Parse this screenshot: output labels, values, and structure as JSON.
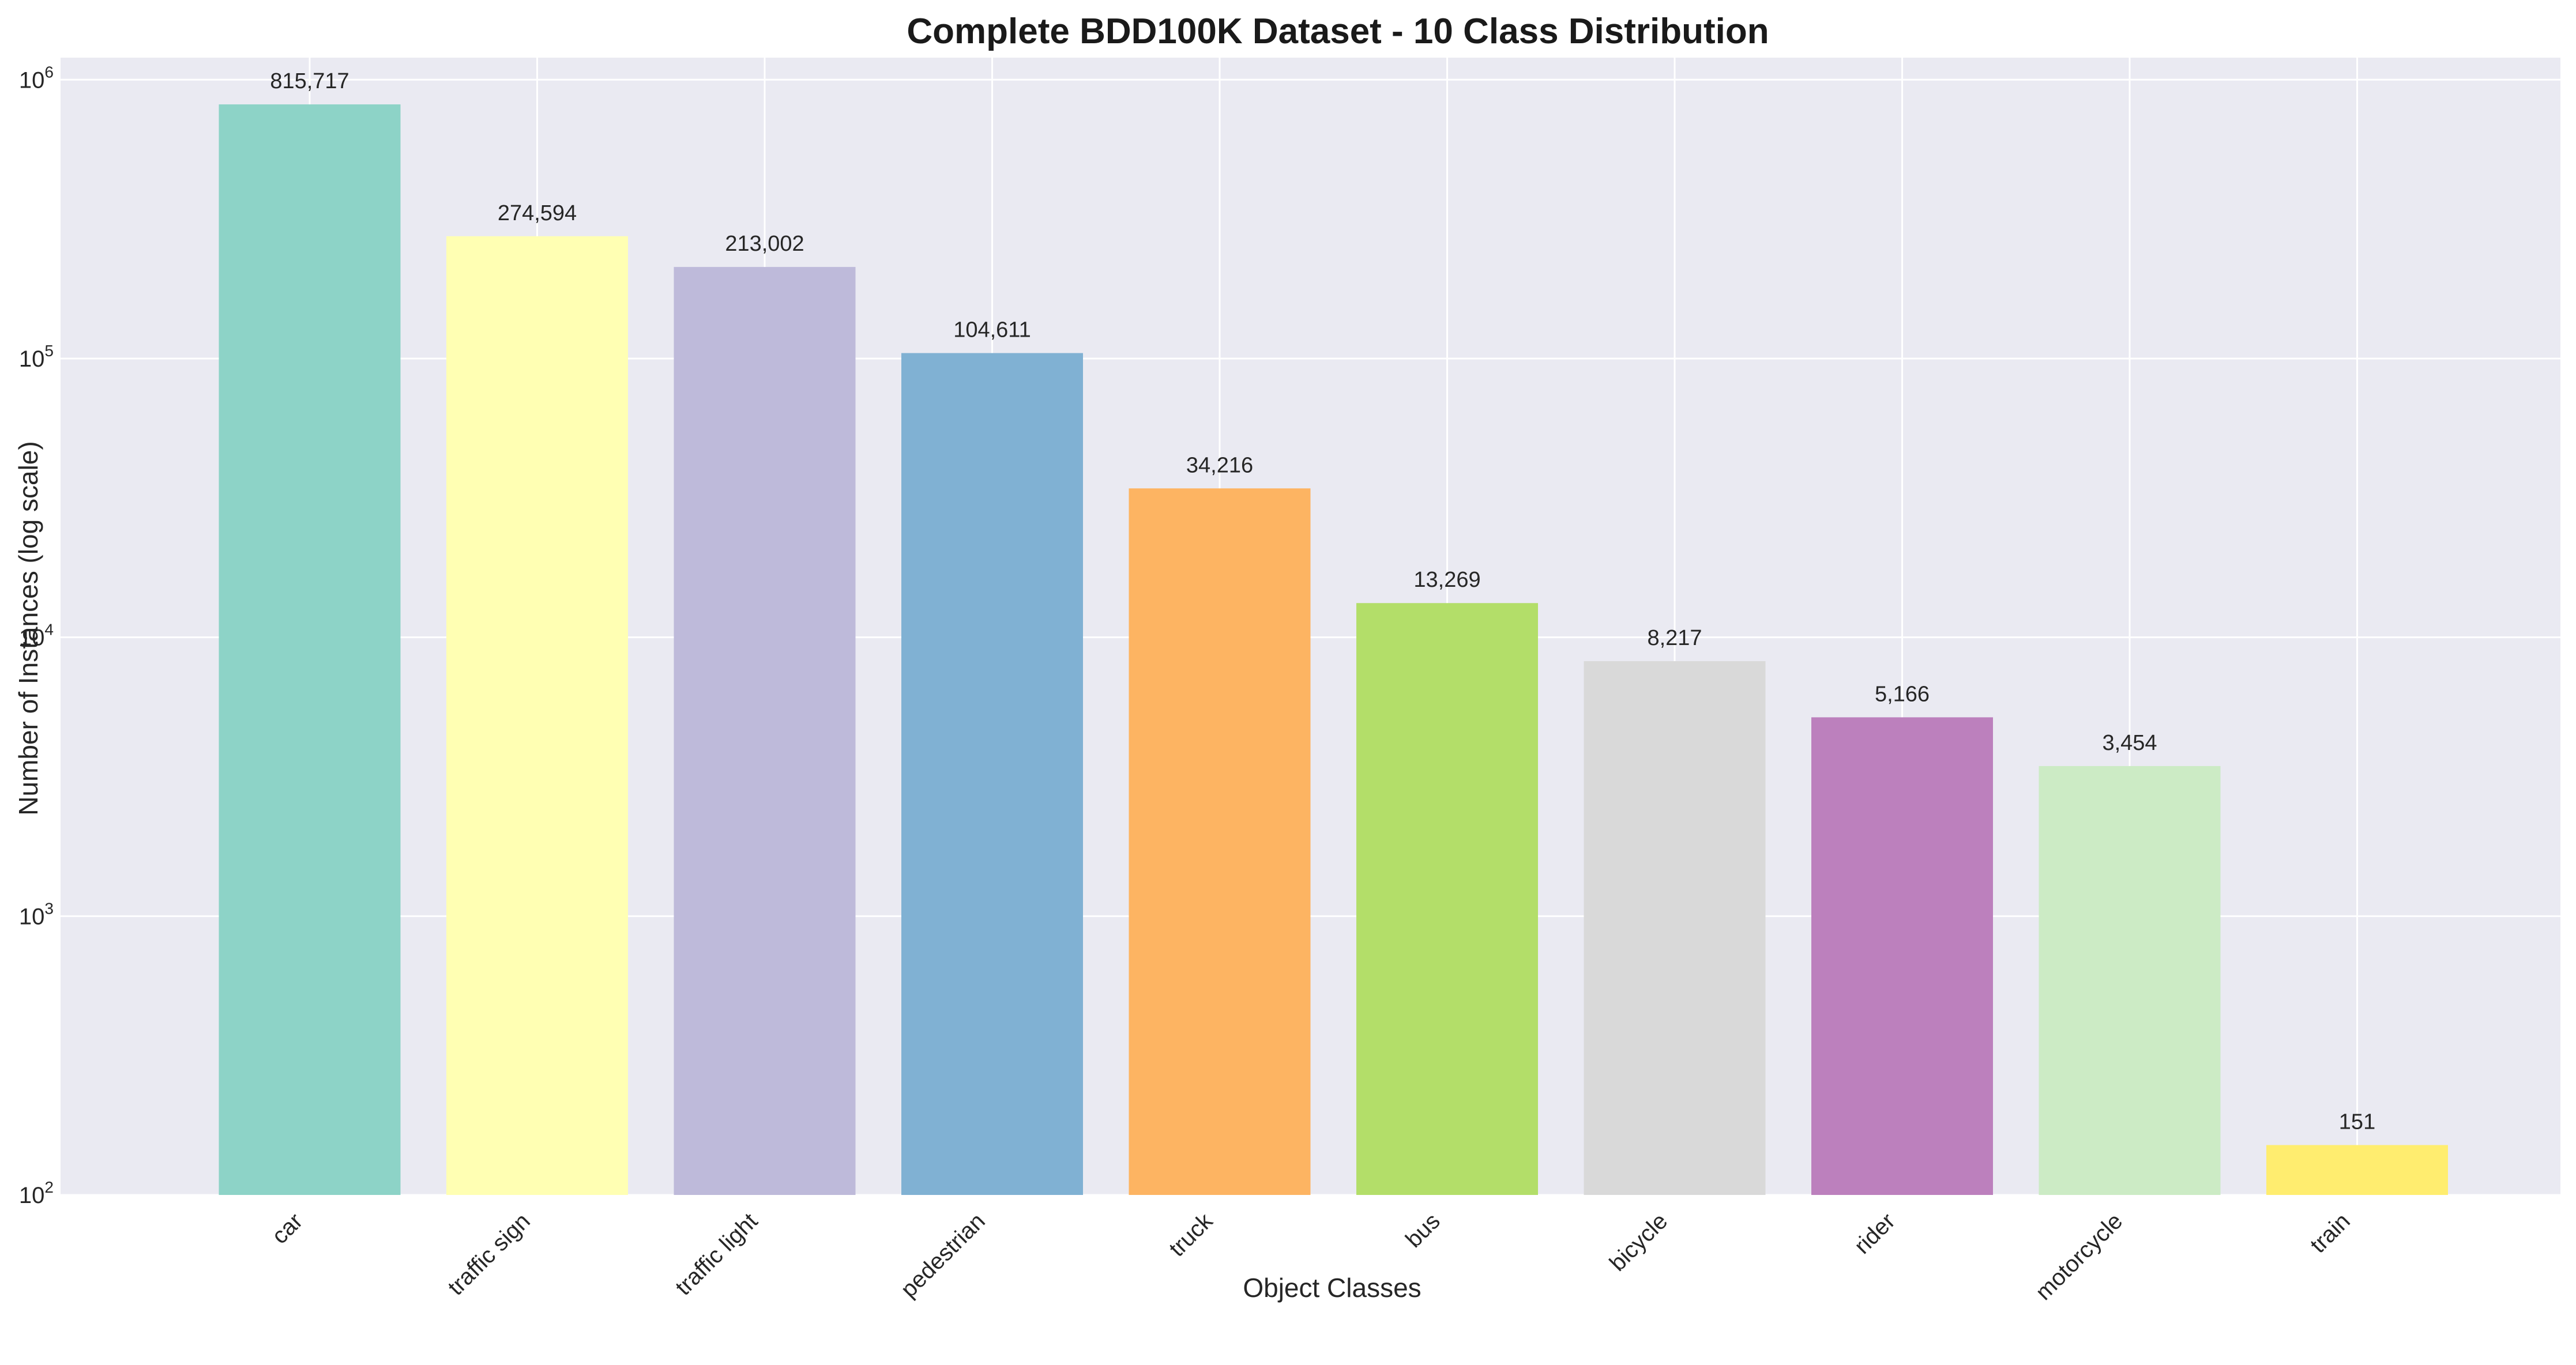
{
  "chart_data": {
    "type": "bar",
    "title": "Complete BDD100K Dataset - 10 Class Distribution",
    "xlabel": "Object Classes",
    "ylabel": "Number of Instances (log scale)",
    "y_scale": "log",
    "ylim": [
      100,
      1200000
    ],
    "y_ticks": [
      {
        "value": 100,
        "base": "10",
        "exp": "2"
      },
      {
        "value": 1000,
        "base": "10",
        "exp": "3"
      },
      {
        "value": 10000,
        "base": "10",
        "exp": "4"
      },
      {
        "value": 100000,
        "base": "10",
        "exp": "5"
      },
      {
        "value": 1000000,
        "base": "10",
        "exp": "6"
      }
    ],
    "grid": true,
    "categories": [
      "car",
      "traffic sign",
      "traffic light",
      "pedestrian",
      "truck",
      "bus",
      "bicycle",
      "rider",
      "motorcycle",
      "train"
    ],
    "values": [
      815717,
      274594,
      213002,
      104611,
      34216,
      13269,
      8217,
      5166,
      3454,
      151
    ],
    "value_labels": [
      "815,717",
      "274,594",
      "213,002",
      "104,611",
      "34,216",
      "13,269",
      "8,217",
      "5,166",
      "3,454",
      "151"
    ],
    "colors": [
      "#8dd3c7",
      "#ffffb3",
      "#bebada",
      "#80b1d3",
      "#fdb462",
      "#b3de69",
      "#d9d9d9",
      "#bc80bd",
      "#ccebc5",
      "#ffed6f"
    ],
    "style": {
      "plot_background": "#eaeaf2",
      "grid_color": "#ffffff"
    }
  }
}
